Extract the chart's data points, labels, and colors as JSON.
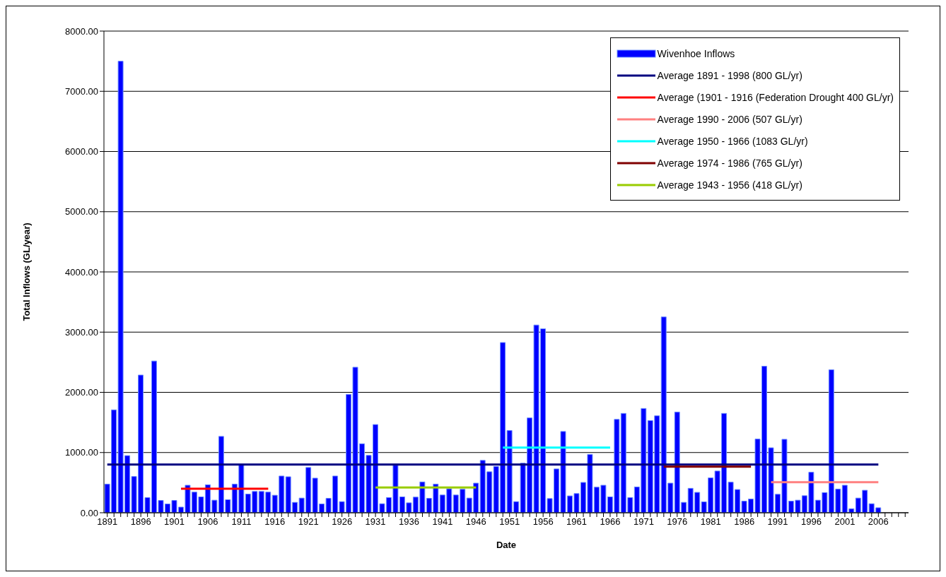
{
  "chart_data": {
    "type": "bar",
    "xlabel": "Date",
    "ylabel": "Total Inflows (GL/year)",
    "categories": [
      "1891",
      null,
      null,
      null,
      null,
      "1896",
      null,
      null,
      null,
      null,
      "1901",
      null,
      null,
      null,
      null,
      "1906",
      null,
      null,
      null,
      null,
      "1911",
      null,
      null,
      null,
      null,
      "1916",
      null,
      null,
      null,
      null,
      "1921",
      null,
      null,
      null,
      null,
      "1926",
      null,
      null,
      null,
      null,
      "1931",
      null,
      null,
      null,
      null,
      "1936",
      null,
      null,
      null,
      null,
      "1941",
      null,
      null,
      null,
      null,
      "1946",
      null,
      null,
      null,
      null,
      "1951",
      null,
      null,
      null,
      null,
      "1956",
      null,
      null,
      null,
      null,
      "1961",
      null,
      null,
      null,
      null,
      "1966",
      null,
      null,
      null,
      null,
      "1971",
      null,
      null,
      null,
      null,
      "1976",
      null,
      null,
      null,
      null,
      "1981",
      null,
      null,
      null,
      null,
      "1986",
      null,
      null,
      null,
      null,
      "1991",
      null,
      null,
      null,
      null,
      "1996",
      null,
      null,
      null,
      null,
      "2001",
      null,
      null,
      null,
      null,
      "2006",
      null,
      null,
      null,
      null
    ],
    "series": [
      {
        "name": "Wivenhoe Inflows",
        "color": "#0000ff",
        "values": [
          476,
          1709,
          7500,
          949,
          602,
          2287,
          252,
          2520,
          205,
          146,
          205,
          94,
          457,
          343,
          264,
          465,
          209,
          1268,
          217,
          476,
          800,
          311,
          354,
          354,
          343,
          291,
          610,
          598,
          173,
          244,
          752,
          575,
          146,
          240,
          610,
          185,
          1965,
          2417,
          1146,
          953,
          1465,
          150,
          252,
          790,
          264,
          165,
          260,
          512,
          240,
          476,
          295,
          398,
          295,
          390,
          244,
          492,
          870,
          681,
          768,
          2827,
          1366,
          185,
          823,
          1575,
          3118,
          3055,
          236,
          728,
          1350,
          280,
          319,
          504,
          969,
          425,
          457,
          264,
          1551,
          1650,
          252,
          429,
          1732,
          1531,
          1610,
          3252,
          492,
          1673,
          173,
          406,
          339,
          181,
          579,
          693,
          1650,
          508,
          386,
          193,
          228,
          1224,
          2433,
          1079,
          307,
          1220,
          193,
          209,
          283,
          673,
          209,
          335,
          2374,
          394,
          457,
          67,
          244,
          374,
          150,
          83,
          null,
          null,
          null,
          null
        ]
      },
      {
        "type": "line",
        "name": "Average 1891 - 1998 (800 GL/yr)",
        "color": "#000080",
        "values": [
          800,
          800,
          800,
          800,
          800,
          800,
          800,
          800,
          800,
          800,
          800,
          800,
          800,
          800,
          800,
          800,
          800,
          800,
          800,
          800,
          800,
          800,
          800,
          800,
          800,
          800,
          800,
          800,
          800,
          800,
          800,
          800,
          800,
          800,
          800,
          800,
          800,
          800,
          800,
          800,
          800,
          800,
          800,
          800,
          800,
          800,
          800,
          800,
          800,
          800,
          800,
          800,
          800,
          800,
          800,
          800,
          800,
          800,
          800,
          800,
          800,
          800,
          800,
          800,
          800,
          800,
          800,
          800,
          800,
          800,
          800,
          800,
          800,
          800,
          800,
          800,
          800,
          800,
          800,
          800,
          800,
          800,
          800,
          800,
          800,
          800,
          800,
          800,
          800,
          800,
          800,
          800,
          800,
          800,
          800,
          800,
          800,
          800,
          800,
          800,
          800,
          800,
          800,
          800,
          800,
          800,
          800,
          800,
          800,
          800,
          800,
          800,
          800,
          800,
          800,
          800,
          null,
          null,
          null,
          null
        ]
      },
      {
        "type": "line",
        "name": "Average (1901 - 1916 (Federation Drought 400 GL/yr)",
        "color": "#ff0000",
        "values": [
          null,
          null,
          null,
          null,
          null,
          null,
          null,
          null,
          null,
          null,
          null,
          400,
          400,
          400,
          400,
          400,
          400,
          400,
          400,
          400,
          400,
          400,
          400,
          400,
          400,
          null,
          null,
          null,
          null,
          null,
          null,
          null,
          null,
          null,
          null,
          null,
          null,
          null,
          null,
          null,
          null,
          null,
          null,
          null,
          null,
          null,
          null,
          null,
          null,
          null,
          null,
          null,
          null,
          null,
          null,
          null,
          null,
          null,
          null,
          null,
          null,
          null,
          null,
          null,
          null,
          null,
          null,
          null,
          null,
          null,
          null,
          null,
          null,
          null,
          null,
          null,
          null,
          null,
          null,
          null,
          null,
          null,
          null,
          null,
          null,
          null,
          null,
          null,
          null,
          null,
          null,
          null,
          null,
          null,
          null,
          null,
          null,
          null,
          null,
          null,
          null,
          null,
          null,
          null,
          null,
          null,
          null,
          null,
          null,
          null,
          null,
          null,
          null,
          null,
          null,
          null,
          null,
          null,
          null,
          null
        ]
      },
      {
        "type": "line",
        "name": "Average 1990 - 2006 (507 GL/yr)",
        "color": "#ff8080",
        "values": [
          null,
          null,
          null,
          null,
          null,
          null,
          null,
          null,
          null,
          null,
          null,
          null,
          null,
          null,
          null,
          null,
          null,
          null,
          null,
          null,
          null,
          null,
          null,
          null,
          null,
          null,
          null,
          null,
          null,
          null,
          null,
          null,
          null,
          null,
          null,
          null,
          null,
          null,
          null,
          null,
          null,
          null,
          null,
          null,
          null,
          null,
          null,
          null,
          null,
          null,
          null,
          null,
          null,
          null,
          null,
          null,
          null,
          null,
          null,
          null,
          null,
          null,
          null,
          null,
          null,
          null,
          null,
          null,
          null,
          null,
          null,
          null,
          null,
          null,
          null,
          null,
          null,
          null,
          null,
          null,
          null,
          null,
          null,
          null,
          null,
          null,
          null,
          null,
          null,
          null,
          null,
          null,
          null,
          null,
          null,
          null,
          null,
          null,
          null,
          507,
          507,
          507,
          507,
          507,
          507,
          507,
          507,
          507,
          507,
          507,
          507,
          507,
          507,
          507,
          507,
          507,
          null,
          null,
          null,
          null
        ]
      },
      {
        "type": "line",
        "name": "Average 1950 - 1966 (1083 GL/yr)",
        "color": "#00ffff",
        "values": [
          null,
          null,
          null,
          null,
          null,
          null,
          null,
          null,
          null,
          null,
          null,
          null,
          null,
          null,
          null,
          null,
          null,
          null,
          null,
          null,
          null,
          null,
          null,
          null,
          null,
          null,
          null,
          null,
          null,
          null,
          null,
          null,
          null,
          null,
          null,
          null,
          null,
          null,
          null,
          null,
          null,
          null,
          null,
          null,
          null,
          null,
          null,
          null,
          null,
          null,
          null,
          null,
          null,
          null,
          null,
          null,
          null,
          null,
          null,
          1083,
          1083,
          1083,
          1083,
          1083,
          1083,
          1083,
          1083,
          1083,
          1083,
          1083,
          1083,
          1083,
          1083,
          1083,
          1083,
          1083,
          null,
          null,
          null,
          null,
          null,
          null,
          null,
          null,
          null,
          null,
          null,
          null,
          null,
          null,
          null,
          null,
          null,
          null,
          null,
          null,
          null,
          null,
          null,
          null,
          null,
          null,
          null,
          null,
          null,
          null,
          null,
          null,
          null,
          null,
          null,
          null,
          null,
          null,
          null,
          null,
          null,
          null,
          null,
          null
        ]
      },
      {
        "type": "line",
        "name": "Average 1974 - 1986 (765 GL/yr)",
        "color": "#800000",
        "values": [
          null,
          null,
          null,
          null,
          null,
          null,
          null,
          null,
          null,
          null,
          null,
          null,
          null,
          null,
          null,
          null,
          null,
          null,
          null,
          null,
          null,
          null,
          null,
          null,
          null,
          null,
          null,
          null,
          null,
          null,
          null,
          null,
          null,
          null,
          null,
          null,
          null,
          null,
          null,
          null,
          null,
          null,
          null,
          null,
          null,
          null,
          null,
          null,
          null,
          null,
          null,
          null,
          null,
          null,
          null,
          null,
          null,
          null,
          null,
          null,
          null,
          null,
          null,
          null,
          null,
          null,
          null,
          null,
          null,
          null,
          null,
          null,
          null,
          null,
          null,
          null,
          null,
          null,
          null,
          null,
          null,
          null,
          null,
          765,
          765,
          765,
          765,
          765,
          765,
          765,
          765,
          765,
          765,
          765,
          765,
          765,
          765,
          null,
          null,
          null,
          null,
          null,
          null,
          null,
          null,
          null,
          null,
          null,
          null,
          null,
          null,
          null,
          null,
          null,
          null,
          null,
          null,
          null,
          null,
          null
        ]
      },
      {
        "type": "line",
        "name": "Average 1943 - 1956 (418 GL/yr)",
        "color": "#99cc00",
        "values": [
          null,
          null,
          null,
          null,
          null,
          null,
          null,
          null,
          null,
          null,
          null,
          null,
          null,
          null,
          null,
          null,
          null,
          null,
          null,
          null,
          null,
          null,
          null,
          null,
          null,
          null,
          null,
          null,
          null,
          null,
          null,
          null,
          null,
          null,
          null,
          null,
          null,
          null,
          null,
          null,
          418,
          418,
          418,
          418,
          418,
          418,
          418,
          418,
          418,
          418,
          418,
          418,
          418,
          418,
          418,
          418,
          null,
          null,
          null,
          null,
          null,
          null,
          null,
          null,
          null,
          null,
          null,
          null,
          null,
          null,
          null,
          null,
          null,
          null,
          null,
          null,
          null,
          null,
          null,
          null,
          null,
          null,
          null,
          null,
          null,
          null,
          null,
          null,
          null,
          null,
          null,
          null,
          null,
          null,
          null,
          null,
          null,
          null,
          null,
          null,
          null,
          null,
          null,
          null,
          null,
          null,
          null,
          null,
          null,
          null,
          null,
          null,
          null,
          null,
          null,
          null,
          null,
          null,
          null,
          null
        ]
      }
    ],
    "ylim": [
      0,
      8000
    ],
    "yticks": [
      {
        "value": 0,
        "label": "0.00"
      },
      {
        "value": 1000,
        "label": "1000.00"
      },
      {
        "value": 2000,
        "label": "2000.00"
      },
      {
        "value": 3000,
        "label": "3000.00"
      },
      {
        "value": 4000,
        "label": "4000.00"
      },
      {
        "value": 5000,
        "label": "5000.00"
      },
      {
        "value": 6000,
        "label": "6000.00"
      },
      {
        "value": 7000,
        "label": "7000.00"
      },
      {
        "value": 8000,
        "label": "8000.00"
      }
    ],
    "grid": "y",
    "legend": "top right"
  }
}
